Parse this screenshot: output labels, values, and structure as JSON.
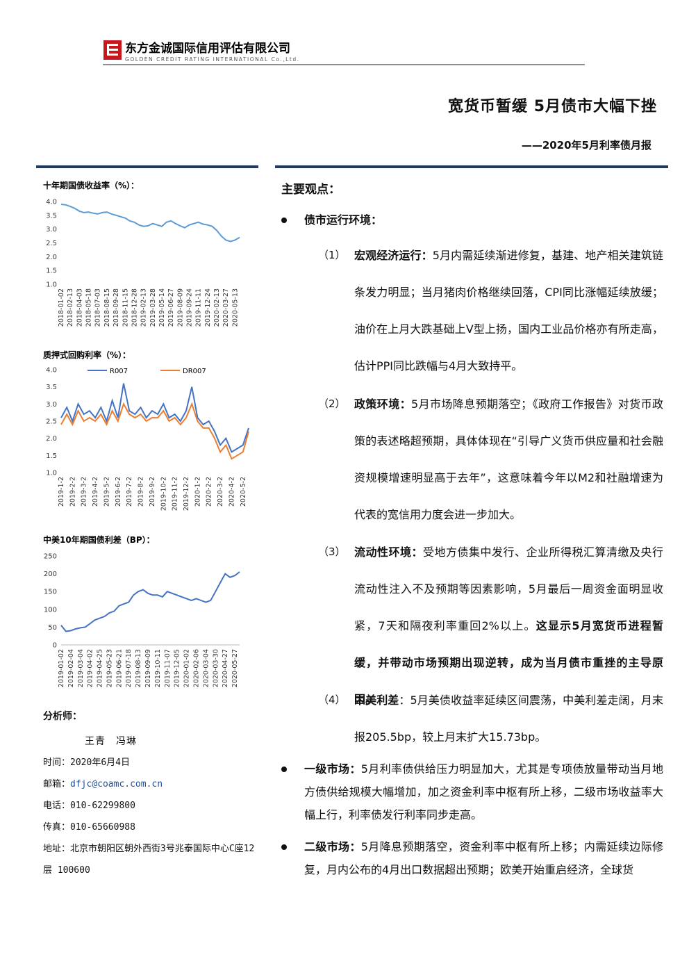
{
  "header": {
    "company": "东方金诚国际信用评估有限公司",
    "company_en": "GOLDEN CREDIT RATING INTERNATIONAL Co.,Ltd."
  },
  "title": "宽货币暂缓 5月债市大幅下挫",
  "subtitle": "——2020年5月利率债月报",
  "charts": [
    {
      "type": "line",
      "title": "十年期国债收益率（%）：",
      "categories": [
        "2018-01-02",
        null,
        "2018-02-13",
        null,
        "2018-04-03",
        null,
        "2018-05-18",
        null,
        "2018-07-03",
        null,
        "2018-08-15",
        null,
        "2018-09-28",
        null,
        "2018-11-15",
        null,
        "2018-12-28",
        null,
        "2019-02-13",
        null,
        "2019-03-28",
        null,
        "2019-05-14",
        null,
        "2019-06-27",
        null,
        "2019-08-09",
        null,
        "2019-09-24",
        null,
        "2019-11-11",
        null,
        "2019-12-24",
        null,
        "2020-02-13",
        null,
        "2020-03-27",
        null,
        "2020-05-13",
        null
      ],
      "series": [
        {
          "color": "#5b9bd5",
          "values": [
            3.9,
            3.88,
            3.82,
            3.75,
            3.65,
            3.6,
            3.62,
            3.58,
            3.55,
            3.6,
            3.62,
            3.55,
            3.5,
            3.45,
            3.4,
            3.3,
            3.25,
            3.15,
            3.1,
            3.12,
            3.2,
            3.15,
            3.1,
            3.25,
            3.3,
            3.2,
            3.12,
            3.05,
            3.15,
            3.2,
            3.25,
            3.18,
            3.15,
            3.1,
            2.95,
            2.75,
            2.6,
            2.55,
            2.6,
            2.7
          ]
        }
      ],
      "ylim": [
        1,
        4
      ],
      "yticks": [
        {
          "value": 1,
          "label": "1.0"
        },
        {
          "value": 1.5,
          "label": "1.5"
        },
        {
          "value": 2,
          "label": "2.0"
        },
        {
          "value": 2.5,
          "label": "2.5"
        },
        {
          "value": 3,
          "label": "3.0"
        },
        {
          "value": 3.5,
          "label": "3.5"
        },
        {
          "value": 4,
          "label": "4.0"
        }
      ]
    },
    {
      "type": "line",
      "title": "质押式回购利率（%）：",
      "categories": [
        "2019-1-2",
        null,
        "2019-2-2",
        null,
        "2019-3-2",
        null,
        "2019-4-2",
        null,
        "2019-5-2",
        null,
        "2019-6-2",
        null,
        "2019-7-2",
        null,
        "2019-8-2",
        null,
        "2019-9-2",
        null,
        "2019-10-2",
        null,
        "2019-11-2",
        null,
        "2019-12-2",
        null,
        "2020-1-2",
        null,
        "2020-2-2",
        null,
        "2020-3-2",
        null,
        "2020-4-2",
        null,
        "2020-5-2",
        null
      ],
      "series": [
        {
          "name": "R007",
          "color": "#4472c4",
          "values": [
            2.6,
            2.9,
            2.5,
            3.0,
            2.7,
            2.8,
            2.6,
            2.9,
            2.5,
            3.1,
            2.6,
            3.6,
            2.8,
            2.7,
            2.9,
            2.6,
            2.8,
            2.7,
            3.0,
            2.6,
            2.7,
            2.5,
            2.8,
            3.5,
            2.6,
            2.4,
            2.5,
            2.2,
            1.8,
            2.0,
            1.6,
            1.7,
            1.8,
            2.3
          ]
        },
        {
          "name": "DR007",
          "color": "#ed7d31",
          "values": [
            2.4,
            2.7,
            2.4,
            2.8,
            2.5,
            2.6,
            2.5,
            2.7,
            2.4,
            2.8,
            2.5,
            3.0,
            2.7,
            2.6,
            2.7,
            2.5,
            2.6,
            2.6,
            2.8,
            2.5,
            2.6,
            2.4,
            2.6,
            3.0,
            2.5,
            2.3,
            2.3,
            2.0,
            1.6,
            1.8,
            1.4,
            1.5,
            1.6,
            2.2
          ]
        }
      ],
      "ylim": [
        1,
        4
      ],
      "yticks": [
        {
          "value": 1,
          "label": "1.0"
        },
        {
          "value": 1.5,
          "label": "1.5"
        },
        {
          "value": 2,
          "label": "2.0"
        },
        {
          "value": 2.5,
          "label": "2.5"
        },
        {
          "value": 3,
          "label": "3.0"
        },
        {
          "value": 3.5,
          "label": "3.5"
        },
        {
          "value": 4,
          "label": "4.0"
        }
      ]
    },
    {
      "type": "line",
      "title": "中美10年期国债利差（BP）：",
      "categories": [
        "2019-01-02",
        null,
        "2019-02-04",
        null,
        "2019-03-04",
        null,
        "2019-04-02",
        null,
        "2019-04-25",
        null,
        "2019-05-23",
        null,
        "2019-06-21",
        null,
        "2019-07-18",
        null,
        "2019-08-13",
        null,
        "2019-09-09",
        null,
        "2019-10-11",
        null,
        "2019-11-07",
        null,
        "2019-12-05",
        null,
        "2020-01-02",
        null,
        "2020-02-06",
        null,
        "2020-03-04",
        null,
        "2020-03-30",
        null,
        "2020-04-27",
        null,
        "2020-05-27",
        null
      ],
      "series": [
        {
          "color": "#4472c4",
          "values": [
            55,
            38,
            40,
            45,
            48,
            50,
            60,
            70,
            75,
            80,
            90,
            95,
            110,
            115,
            120,
            140,
            150,
            155,
            145,
            140,
            140,
            135,
            150,
            145,
            140,
            135,
            130,
            125,
            130,
            125,
            120,
            125,
            150,
            175,
            200,
            190,
            195,
            205
          ]
        }
      ],
      "ylim": [
        0,
        250
      ],
      "yticks": [
        0,
        50,
        100,
        150,
        200,
        250
      ]
    }
  ],
  "main": {
    "heading": "主要观点：",
    "section": "债市运行环境：",
    "items": [
      {
        "num": "（1）",
        "label": "宏观经济运行：",
        "text": "5月内需延续渐进修复，基建、地产相关建筑链条发力明显；当月猪肉价格继续回落，CPI同比涨幅延续放缓；油价在上月大跌基础上V型上扬，国内工业品价格亦有所走高，估计PPI同比跌幅与4月大致持平。"
      },
      {
        "num": "（2）",
        "label": "政策环境：",
        "text": "5月市场降息预期落空；《政府工作报告》对货币政策的表述略超预期，具体体现在“引导广义货币供应量和社会融资规模增速明显高于去年”，这意味着今年以M2和社融增速为代表的宽信用力度会进一步加大。"
      },
      {
        "num": "（3）",
        "label": "流动性环境：",
        "text": "受地方债集中发行、企业所得税汇算清缴及央行流动性注入不及预期等因素影响，5月最后一周资金面明显收紧，7天和隔夜利率重回2%以上。",
        "bold_text": "这显示5月宽货币进程暂缓，并带动市场预期出现逆转，成为当月债市重挫的主导原因。"
      },
      {
        "num": "（4）",
        "label": "中美利差",
        "text": "：5月美债收益率延续区间震荡，中美利差走阔，月末报205.5bp，较上月末扩大15.73bp。"
      }
    ],
    "bullets": [
      {
        "label": "一级市场：",
        "text": "5月利率债供给压力明显加大，尤其是专项债放量带动当月地方债供给规模大幅增加，加之资金利率中枢有所上移，二级市场收益率大幅上行，利率债发行利率同步走高。"
      },
      {
        "label": "二级市场：",
        "text": "5月降息预期落空，资金利率中枢有所上移；内需延续边际修复，月内公布的4月出口数据超出预期；欧美开始重启经济，全球货"
      }
    ]
  },
  "analysts": {
    "heading": "分析师：",
    "names": "王青　冯琳",
    "contacts": [
      {
        "label": "时间：",
        "value": "2020年6月4日"
      },
      {
        "label": "邮箱：",
        "value": "dfjc@coamc.com.cn"
      },
      {
        "label": "电话：",
        "value": "010-62299800"
      },
      {
        "label": "传真：",
        "value": "010-65660988"
      },
      {
        "label": "地址：",
        "value": "北京市朝阳区朝外西街3号兆泰国际中心C座12层 100600"
      }
    ]
  }
}
